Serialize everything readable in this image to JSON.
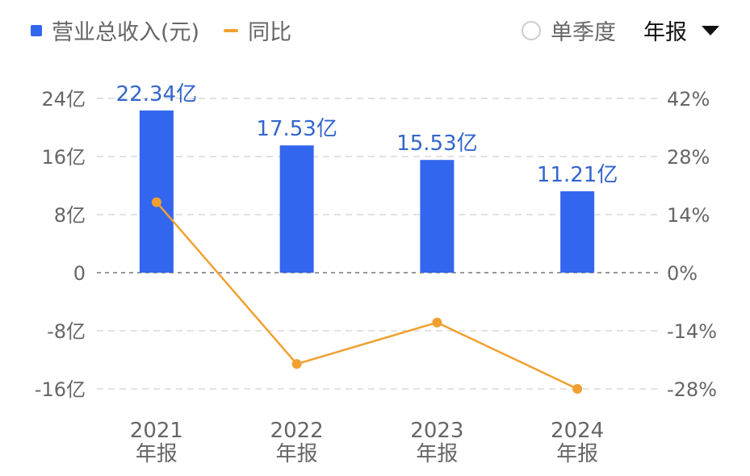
{
  "legend": {
    "bar_label": "营业总收入(元)",
    "line_label": "同比"
  },
  "controls": {
    "quarterly_label": "单季度",
    "period_selected": "年报"
  },
  "colors": {
    "bar": "#3366ee",
    "line": "#f0a030",
    "grid": "#d8d8d8",
    "zero": "#999999"
  },
  "chart_data": {
    "type": "bar",
    "categories": [
      "2021\n年报",
      "2022\n年报",
      "2023\n年报",
      "2024\n年报"
    ],
    "series": [
      {
        "name": "营业总收入(元)",
        "type": "bar",
        "axis": "left",
        "values": [
          22.34,
          17.53,
          15.53,
          11.21
        ],
        "labels": [
          "22.34亿",
          "17.53亿",
          "15.53亿",
          "11.21亿"
        ]
      },
      {
        "name": "同比",
        "type": "line",
        "axis": "right",
        "values": [
          17,
          -22,
          -12,
          -28
        ]
      }
    ],
    "y_left": {
      "ticks": [
        24,
        16,
        8,
        0,
        -8,
        -16
      ],
      "tick_labels": [
        "24亿",
        "16亿",
        "8亿",
        "0",
        "-8亿",
        "-16亿"
      ],
      "range": [
        -16,
        24
      ]
    },
    "y_right": {
      "ticks": [
        42,
        28,
        14,
        0,
        -14,
        -28
      ],
      "tick_labels": [
        "42%",
        "28%",
        "14%",
        "0%",
        "-14%",
        "-28%"
      ],
      "range": [
        -28,
        42
      ]
    },
    "grid": true,
    "legend_position": "top-left"
  }
}
